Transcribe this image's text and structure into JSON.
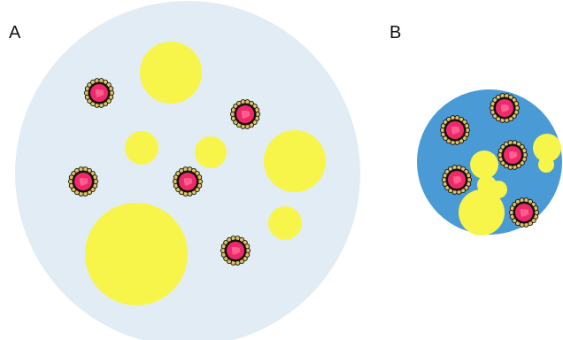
{
  "panels": [
    {
      "label": "A",
      "background_color": "#e2ecf5"
    },
    {
      "label": "B",
      "background_color": "#4a9ad6"
    }
  ],
  "colors": {
    "droplet": "#f7f54a",
    "particle_core": "#ee2a6c",
    "particle_center": "#ff5f8f",
    "particle_ring": "#1a1208",
    "particle_spikes": "#d8c46a"
  }
}
